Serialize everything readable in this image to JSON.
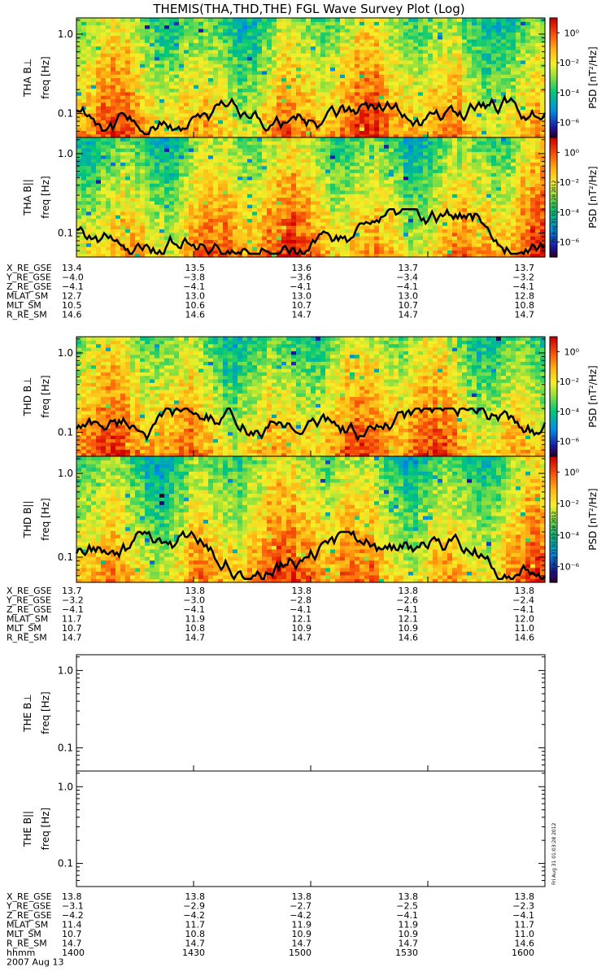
{
  "title": "THEMIS(THA,THD,THE) FGL Wave Survey Plot (Log)",
  "chart_data": {
    "type": "heatmap",
    "yscale": "log",
    "ylim_hz": [
      0.05,
      1.6
    ],
    "y_ticks": [
      "1.0",
      "0.1"
    ],
    "y_tick_values": [
      1.0,
      0.1
    ],
    "colorbar": {
      "label": "PSD [nT²/Hz]",
      "tick_labels": [
        "10⁰",
        "10⁻²",
        "10⁻⁴",
        "10⁻⁶"
      ],
      "tick_values": [
        0,
        -2,
        -4,
        -6
      ],
      "range_log": [
        -7,
        1
      ]
    },
    "panels": [
      {
        "probe": "THA",
        "ylabel": "THA B⊥",
        "has_data": true,
        "seed": 11
      },
      {
        "probe": "THA",
        "ylabel": "THA B||",
        "has_data": true,
        "seed": 23
      },
      {
        "probe": "THD",
        "ylabel": "THD B⊥",
        "has_data": true,
        "seed": 37
      },
      {
        "probe": "THD",
        "ylabel": "THD B||",
        "has_data": true,
        "seed": 49
      },
      {
        "probe": "THE",
        "ylabel": "THE B⊥",
        "has_data": false
      },
      {
        "probe": "THE",
        "ylabel": "THE B||",
        "has_data": false
      }
    ],
    "freq_axis_label": "freq [Hz]",
    "time_ticks": [
      "1400",
      "1430",
      "1500",
      "1530",
      "1600"
    ]
  },
  "ephemeris": {
    "labels": [
      "X_RE_GSE",
      "Y_RE_GSE",
      "Z_RE_GSE",
      "MLAT_SM",
      "MLT_SM",
      "R_RE_SM"
    ],
    "groups": [
      {
        "probe": "THA",
        "rows": [
          [
            "13.4",
            "13.5",
            "13.6",
            "13.7",
            "13.7"
          ],
          [
            "−4.0",
            "−3.8",
            "−3.6",
            "−3.4",
            "−3.2"
          ],
          [
            "−4.1",
            "−4.1",
            "−4.1",
            "−4.1",
            "−4.1"
          ],
          [
            "12.7",
            "13.0",
            "13.0",
            "13.0",
            "12.8"
          ],
          [
            "10.5",
            "10.6",
            "10.7",
            "10.7",
            "10.8"
          ],
          [
            "14.6",
            "14.6",
            "14.7",
            "14.7",
            "14.7"
          ]
        ]
      },
      {
        "probe": "THD",
        "rows": [
          [
            "13.7",
            "13.8",
            "13.8",
            "13.8",
            "13.8"
          ],
          [
            "−3.2",
            "−3.0",
            "−2.8",
            "−2.6",
            "−2.4"
          ],
          [
            "−4.1",
            "−4.1",
            "−4.1",
            "−4.1",
            "−4.1"
          ],
          [
            "11.7",
            "11.9",
            "12.1",
            "12.1",
            "12.0"
          ],
          [
            "10.7",
            "10.8",
            "10.9",
            "10.9",
            "11.0"
          ],
          [
            "14.7",
            "14.7",
            "14.7",
            "14.6",
            "14.6"
          ]
        ]
      },
      {
        "probe": "THE",
        "rows": [
          [
            "13.8",
            "13.8",
            "13.8",
            "13.8",
            "13.8"
          ],
          [
            "−3.1",
            "−2.9",
            "−2.7",
            "−2.5",
            "−2.3"
          ],
          [
            "−4.2",
            "−4.2",
            "−4.2",
            "−4.1",
            "−4.1"
          ],
          [
            "11.4",
            "11.7",
            "11.9",
            "11.9",
            "11.7"
          ],
          [
            "10.7",
            "10.8",
            "10.9",
            "10.9",
            "11.0"
          ],
          [
            "14.7",
            "14.7",
            "14.7",
            "14.7",
            "14.6"
          ]
        ]
      }
    ],
    "time_row_label": "hhmm",
    "date": "2007 Aug 13"
  },
  "timestamp": "Fri Aug 31 01:03:28 2012"
}
